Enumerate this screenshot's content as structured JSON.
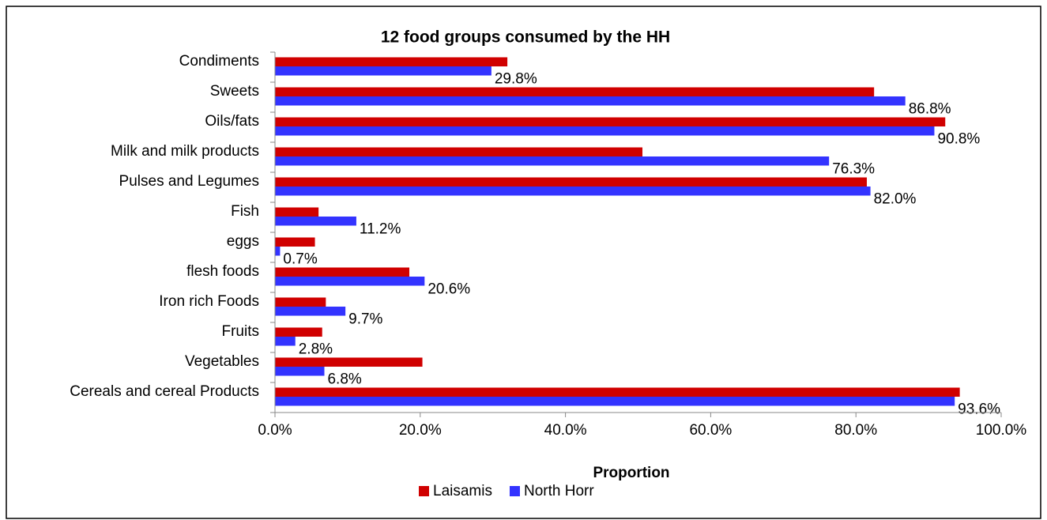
{
  "chart_data": {
    "type": "hbar",
    "title": "12 food groups consumed by the HH",
    "categories": [
      "Condiments",
      "Sweets",
      "Oils/fats",
      "Milk and milk products",
      "Pulses and Legumes",
      "Fish",
      "eggs",
      "flesh foods",
      "Iron rich Foods",
      "Fruits",
      "Vegetables",
      "Cereals and cereal Products"
    ],
    "series": [
      {
        "name": "Laisamis",
        "color": "#d00000",
        "values": [
          32,
          82.5,
          92.3,
          50.6,
          81.5,
          6,
          5.5,
          18.5,
          7,
          6.5,
          20.3,
          94.3
        ]
      },
      {
        "name": "North Horr",
        "color": "#3333ff",
        "values": [
          29.8,
          86.8,
          90.8,
          76.3,
          82.0,
          11.2,
          0.7,
          20.6,
          9.7,
          2.8,
          6.8,
          93.6
        ],
        "value_labels": [
          "29.8%",
          "86.8%",
          "90.8%",
          "76.3%",
          "82.0%",
          "11.2%",
          "0.7%",
          "20.6%",
          "9.7%",
          "2.8%",
          "6.8%",
          "93.6%"
        ]
      }
    ],
    "xlabel": "Proportion",
    "xlim": [
      0,
      100
    ],
    "xticks": [
      {
        "value": 0,
        "label": "0.0%"
      },
      {
        "value": 20,
        "label": "20.0%"
      },
      {
        "value": 40,
        "label": "40.0%"
      },
      {
        "value": 60,
        "label": "60.0%"
      },
      {
        "value": 80,
        "label": "80.0%"
      },
      {
        "value": 100,
        "label": "100.0%"
      }
    ],
    "legend": "bottom"
  }
}
